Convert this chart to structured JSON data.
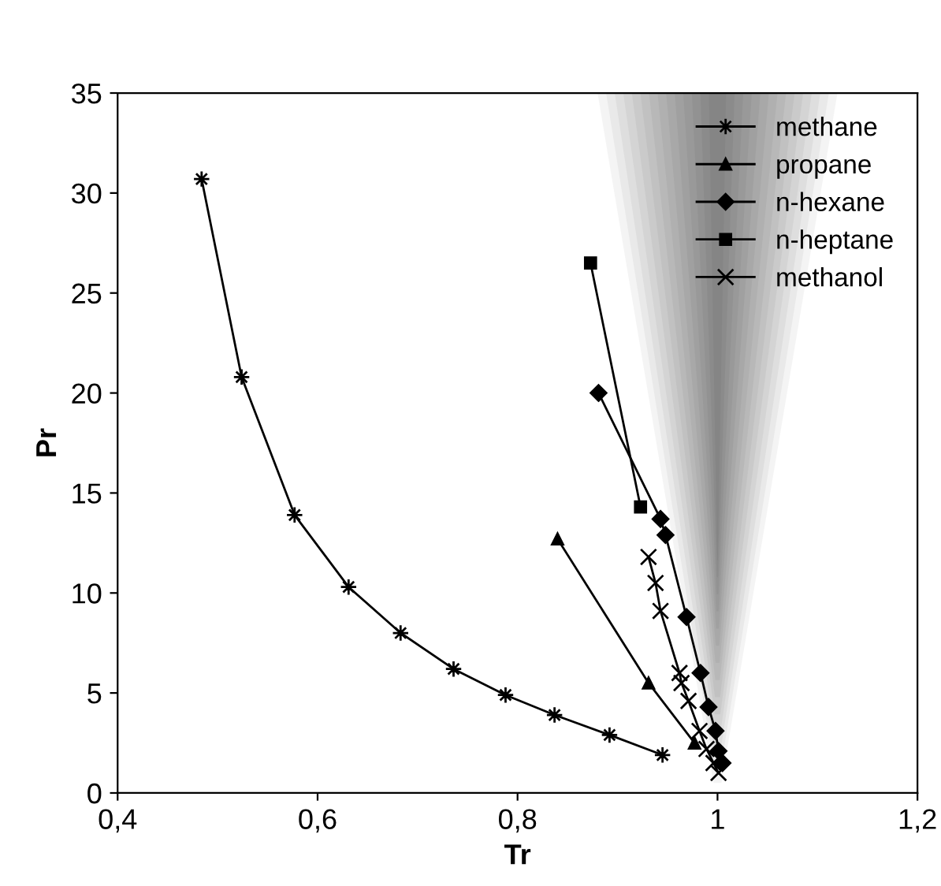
{
  "chart_data": {
    "type": "line",
    "xlabel": "Tr",
    "ylabel": "Pr",
    "xlim": [
      0.4,
      1.2
    ],
    "xticks": [
      {
        "value": 0.4,
        "label": "0,4"
      },
      {
        "value": 0.6,
        "label": "0,6"
      },
      {
        "value": 0.8,
        "label": "0,8"
      },
      1,
      {
        "value": 1.2,
        "label": "1,2"
      }
    ],
    "ylim": [
      0,
      35
    ],
    "yticks": [
      0,
      5,
      10,
      15,
      20,
      25,
      30,
      35
    ],
    "grid": false,
    "legend": "top right",
    "line_style": "solid",
    "series": [
      {
        "name": "methane",
        "color": "#000000",
        "marker": "star",
        "x": [
          0.484,
          0.524,
          0.577,
          0.631,
          0.683,
          0.736,
          0.788,
          0.837,
          0.892,
          0.945
        ],
        "values": [
          30.7,
          20.8,
          13.9,
          10.3,
          8.0,
          6.2,
          4.9,
          3.9,
          2.9,
          1.9
        ]
      },
      {
        "name": "propane",
        "color": "#000000",
        "marker": "triangle",
        "x": [
          0.84,
          0.931,
          0.977
        ],
        "values": [
          12.7,
          5.5,
          2.5
        ]
      },
      {
        "name": "n-hexane",
        "color": "#000000",
        "marker": "diamond",
        "x": [
          0.881,
          0.943,
          0.948,
          0.969,
          0.983,
          0.991,
          0.998,
          1.001,
          1.005
        ],
        "values": [
          20.0,
          13.7,
          12.9,
          8.8,
          6.0,
          4.3,
          3.1,
          2.1,
          1.5
        ]
      },
      {
        "name": "n-heptane",
        "color": "#000000",
        "marker": "square",
        "x": [
          0.873,
          0.923
        ],
        "values": [
          26.5,
          14.3
        ]
      },
      {
        "name": "methanol",
        "color": "#000000",
        "marker": "cross",
        "x": [
          0.931,
          0.938,
          0.943,
          0.962,
          0.964,
          0.971,
          0.982,
          0.989,
          0.996,
          1.001
        ],
        "values": [
          11.8,
          10.5,
          9.1,
          6.0,
          5.5,
          4.6,
          3.1,
          2.2,
          1.5,
          1.0
        ]
      }
    ]
  }
}
